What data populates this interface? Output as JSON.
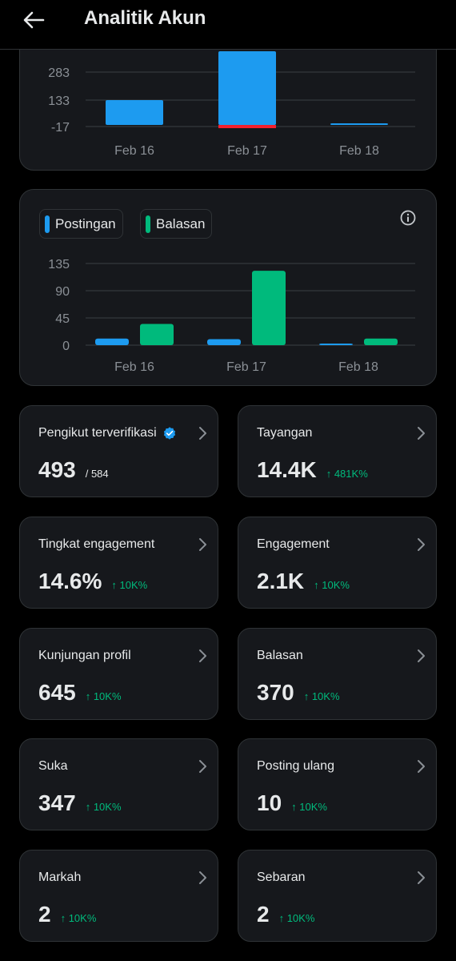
{
  "header": {
    "title": "Analitik Akun",
    "back_icon": "arrow-left-icon"
  },
  "chart_data": [
    {
      "type": "bar",
      "categories": [
        "Feb 16",
        "Feb 17",
        "Feb 18"
      ],
      "yticks": [
        "283",
        "133",
        "-17"
      ],
      "series": [
        {
          "values": [
            133,
            430,
            0
          ],
          "color": "#1d9bf0",
          "negative_values": [
            0,
            -17,
            0
          ],
          "negative_color": "#f4212e"
        }
      ],
      "ylim": [
        -17,
        430
      ]
    },
    {
      "type": "bar",
      "categories": [
        "Feb 16",
        "Feb 17",
        "Feb 18"
      ],
      "yticks": [
        "135",
        "90",
        "45",
        "0"
      ],
      "ylim": [
        0,
        135
      ],
      "series": [
        {
          "name": "Postingan",
          "values": [
            11,
            10,
            1
          ],
          "color": "#1d9bf0"
        },
        {
          "name": "Balasan",
          "values": [
            35,
            123,
            11
          ],
          "color": "#00ba7c"
        }
      ]
    }
  ],
  "stats": [
    {
      "label": "Pengikut terverifikasi",
      "value": "493",
      "sub": "/ 584",
      "verified": true
    },
    {
      "label": "Tayangan",
      "value": "14.4K",
      "delta": "↑ 481K%"
    },
    {
      "label": "Tingkat engagement",
      "value": "14.6%",
      "delta": "↑ 10K%"
    },
    {
      "label": "Engagement",
      "value": "2.1K",
      "delta": "↑ 10K%"
    },
    {
      "label": "Kunjungan profil",
      "value": "645",
      "delta": "↑ 10K%"
    },
    {
      "label": "Balasan",
      "value": "370",
      "delta": "↑ 10K%"
    },
    {
      "label": "Suka",
      "value": "347",
      "delta": "↑ 10K%"
    },
    {
      "label": "Posting ulang",
      "value": "10",
      "delta": "↑ 10K%"
    },
    {
      "label": "Markah",
      "value": "2",
      "delta": "↑ 10K%"
    },
    {
      "label": "Sebaran",
      "value": "2",
      "delta": "↑ 10K%"
    }
  ],
  "colors": {
    "accent_blue": "#1d9bf0",
    "accent_green": "#00ba7c",
    "negative_red": "#f4212e"
  }
}
